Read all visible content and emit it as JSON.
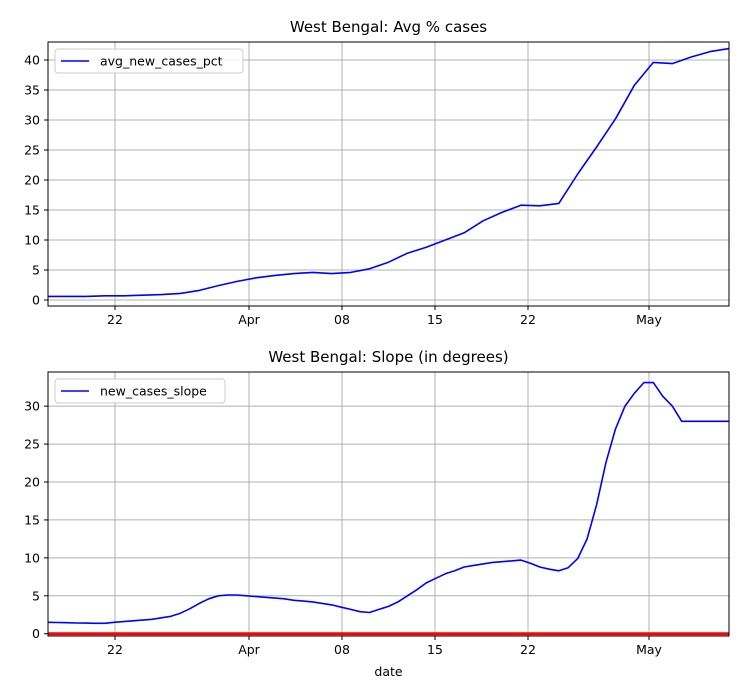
{
  "chart_data": [
    {
      "type": "line",
      "title": "West Bengal: Avg % cases",
      "xlabel": "",
      "ylabel": "",
      "x_ticks": [
        "22",
        "Apr",
        "08",
        "15",
        "22",
        "May"
      ],
      "y_ticks": [
        "0",
        "5",
        "10",
        "15",
        "20",
        "25",
        "30",
        "35",
        "40"
      ],
      "ylim": [
        -1,
        43
      ],
      "xlim": [
        0,
        72
      ],
      "grid": true,
      "legend_position": "top-left",
      "series": [
        {
          "name": "avg_new_cases_pct",
          "color": "#0000ff",
          "x": [
            0,
            2,
            4,
            6,
            8,
            10,
            12,
            14,
            16,
            18,
            20,
            22,
            24,
            26,
            28,
            30,
            32,
            34,
            36,
            38,
            40,
            42,
            44,
            46,
            48,
            50,
            52,
            54,
            56,
            58,
            60,
            62,
            64,
            66,
            68,
            70,
            72
          ],
          "values": [
            0.6,
            0.6,
            0.6,
            0.7,
            0.7,
            0.8,
            0.9,
            1.1,
            1.6,
            2.4,
            3.1,
            3.7,
            4.1,
            4.4,
            4.6,
            4.4,
            4.6,
            5.2,
            6.3,
            7.8,
            8.8,
            10.0,
            11.2,
            13.2,
            14.6,
            15.8,
            15.7,
            16.1,
            21.0,
            25.5,
            30.2,
            35.8,
            39.6,
            39.4,
            40.5,
            41.4,
            41.9
          ]
        }
      ]
    },
    {
      "type": "line",
      "title": "West Bengal: Slope (in degrees)",
      "xlabel": "date",
      "ylabel": "",
      "x_ticks": [
        "22",
        "Apr",
        "08",
        "15",
        "22",
        "May"
      ],
      "y_ticks": [
        "0",
        "5",
        "10",
        "15",
        "20",
        "25",
        "30"
      ],
      "ylim": [
        -0.3,
        34.5
      ],
      "xlim": [
        0,
        72
      ],
      "grid": true,
      "legend_position": "top-left",
      "series": [
        {
          "name": "new_cases_slope",
          "color": "#0000ff",
          "x": [
            0,
            1,
            2,
            3,
            4,
            5,
            6,
            7,
            8,
            9,
            10,
            11,
            12,
            13,
            14,
            15,
            16,
            17,
            18,
            19,
            20,
            21,
            22,
            23,
            24,
            25,
            26,
            27,
            28,
            29,
            30,
            31,
            32,
            33,
            34,
            35,
            36,
            37,
            38,
            39,
            40,
            41,
            42,
            43,
            44,
            45,
            46,
            47,
            48,
            49,
            50,
            51,
            52,
            53,
            54,
            55,
            56,
            57,
            58,
            59,
            60,
            61,
            62,
            63,
            64,
            65,
            66,
            67,
            68,
            69,
            70,
            71,
            72
          ],
          "values": [
            1.5,
            1.48,
            1.45,
            1.42,
            1.4,
            1.38,
            1.38,
            1.5,
            1.6,
            1.7,
            1.8,
            1.9,
            2.1,
            2.3,
            2.7,
            3.3,
            4.0,
            4.6,
            5.0,
            5.1,
            5.1,
            5.0,
            4.9,
            4.8,
            4.7,
            4.6,
            4.4,
            4.3,
            4.2,
            4.0,
            3.8,
            3.5,
            3.2,
            2.9,
            2.8,
            3.2,
            3.6,
            4.2,
            5.0,
            5.8,
            6.7,
            7.3,
            7.9,
            8.3,
            8.8,
            9.0,
            9.2,
            9.4,
            9.5,
            9.6,
            9.7,
            9.3,
            8.8,
            8.5,
            8.3,
            8.7,
            9.9,
            12.5,
            17.0,
            22.6,
            27.0,
            30.0,
            31.7,
            33.1,
            33.1,
            31.3,
            30.0,
            28.0,
            28.0,
            28.0,
            28.0,
            28.0,
            28.0
          ]
        },
        {
          "name": "",
          "color": "#ff0000",
          "x": [
            0,
            72
          ],
          "values": [
            0,
            0
          ]
        }
      ]
    }
  ]
}
